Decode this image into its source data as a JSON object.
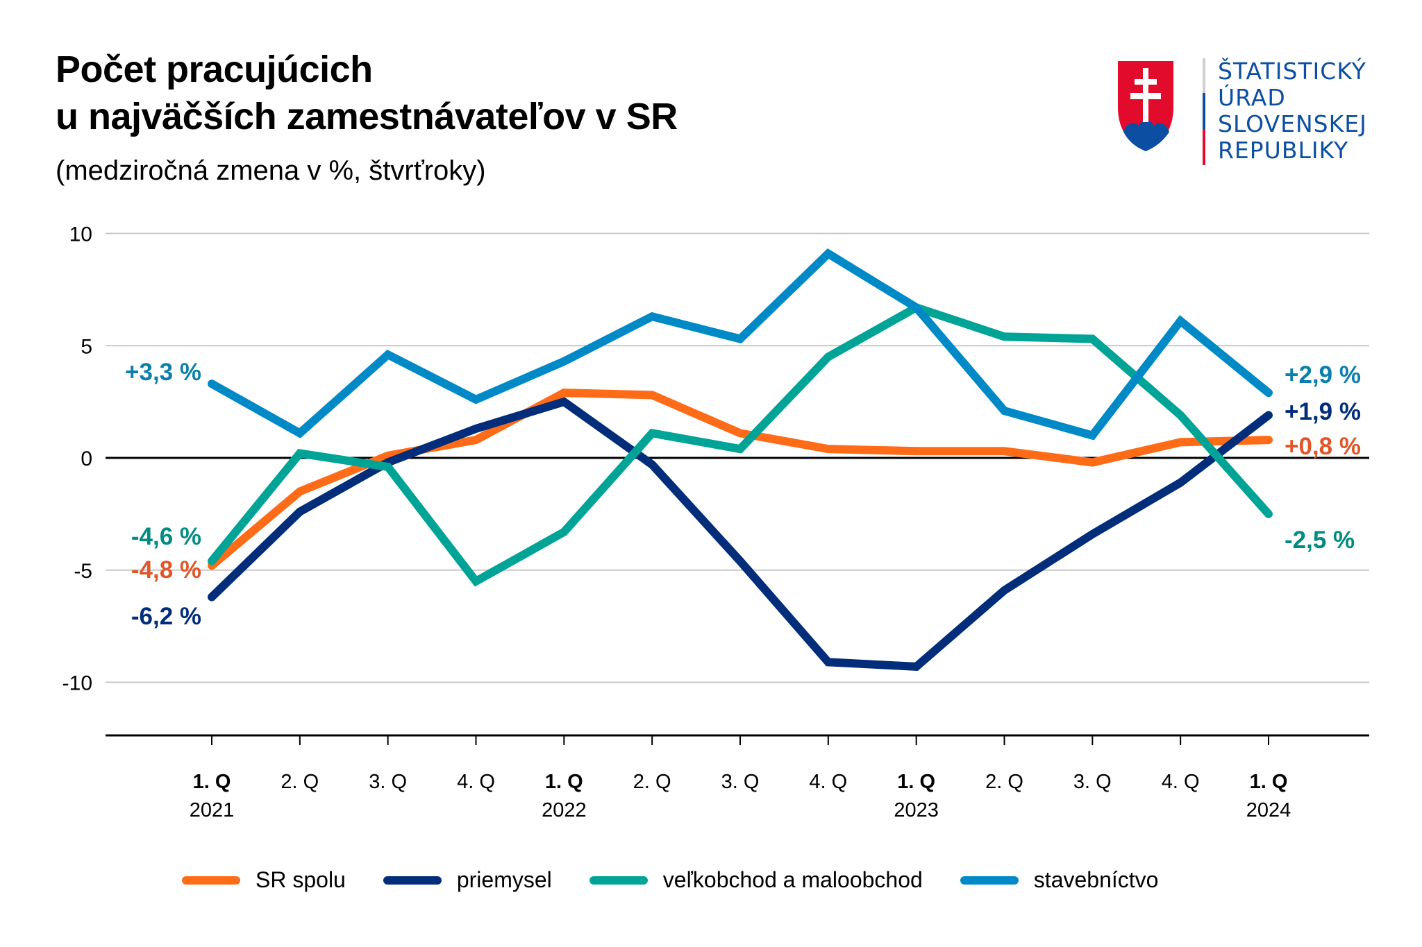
{
  "header": {
    "title_line1": "Počet pracujúcich",
    "title_line2": "u najväčších zamestnávateľov v SR",
    "subtitle": "(medziročná zmena v %, štvrťroky)"
  },
  "logo": {
    "icon": "slovak-coat-of-arms-icon",
    "lines": [
      "ŠTATISTICKÝ",
      "ÚRAD",
      "SLOVENSKEJ",
      "REPUBLIKY"
    ],
    "colors": {
      "red": "#e30b2c",
      "blue": "#0b4ea2",
      "grey": "#d0d0d0"
    }
  },
  "chart_data": {
    "type": "line",
    "title": "Počet pracujúcich u najväčších zamestnávateľov v SR",
    "subtitle": "(medziročná zmena v %, štvrťroky)",
    "xlabel": "",
    "ylabel": "",
    "ylim": [
      -12.5,
      10
    ],
    "yticks": [
      10,
      5,
      0,
      -5,
      -10
    ],
    "ytick_labels": [
      "10",
      "5",
      "0",
      "-5",
      "-10"
    ],
    "grid": true,
    "legend_position": "bottom",
    "x": [
      "1. Q 2021",
      "2. Q 2021",
      "3. Q 2021",
      "4. Q 2021",
      "1. Q 2022",
      "2. Q 2022",
      "3. Q 2022",
      "4. Q 2022",
      "1. Q 2023",
      "2. Q 2023",
      "3. Q 2023",
      "4. Q 2023",
      "1. Q 2024"
    ],
    "x_quarter_labels": [
      "1. Q",
      "2. Q",
      "3. Q",
      "4. Q",
      "1. Q",
      "2. Q",
      "3. Q",
      "4. Q",
      "1. Q",
      "2. Q",
      "3. Q",
      "4. Q",
      "1. Q"
    ],
    "x_year_labels": [
      "2021",
      "",
      "",
      "",
      "2022",
      "",
      "",
      "",
      "2023",
      "",
      "",
      "",
      "2024"
    ],
    "series": [
      {
        "name": "SR spolu",
        "color": "#ff6b17",
        "label_color": "#e0562a",
        "values": [
          -4.8,
          -1.5,
          0.1,
          0.8,
          2.9,
          2.8,
          1.1,
          0.4,
          0.3,
          0.3,
          -0.2,
          0.7,
          0.8
        ],
        "start_label": "-4,8 %",
        "end_label": "+0,8 %"
      },
      {
        "name": "priemysel",
        "color": "#022d7a",
        "label_color": "#022d7a",
        "values": [
          -6.2,
          -2.4,
          -0.2,
          1.3,
          2.5,
          -0.3,
          -4.6,
          -9.1,
          -9.3,
          -5.9,
          -3.4,
          -1.1,
          1.9
        ],
        "start_label": "-6,2 %",
        "end_label": "+1,9 %"
      },
      {
        "name": "veľkobchod a maloobchod",
        "color": "#00a496",
        "label_color": "#008c80",
        "values": [
          -4.6,
          0.2,
          -0.4,
          -5.5,
          -3.3,
          1.1,
          0.4,
          4.5,
          6.7,
          5.4,
          5.3,
          1.9,
          -2.5
        ],
        "start_label": "-4,6 %",
        "end_label": "-2,5 %"
      },
      {
        "name": "stavebníctvo",
        "color": "#0089c7",
        "label_color": "#0a7fae",
        "values": [
          3.3,
          1.1,
          4.6,
          2.6,
          4.3,
          6.3,
          5.3,
          9.1,
          6.7,
          2.1,
          1.0,
          6.1,
          2.9
        ],
        "start_label": "+3,3 %",
        "end_label": "+2,9 %"
      }
    ]
  }
}
